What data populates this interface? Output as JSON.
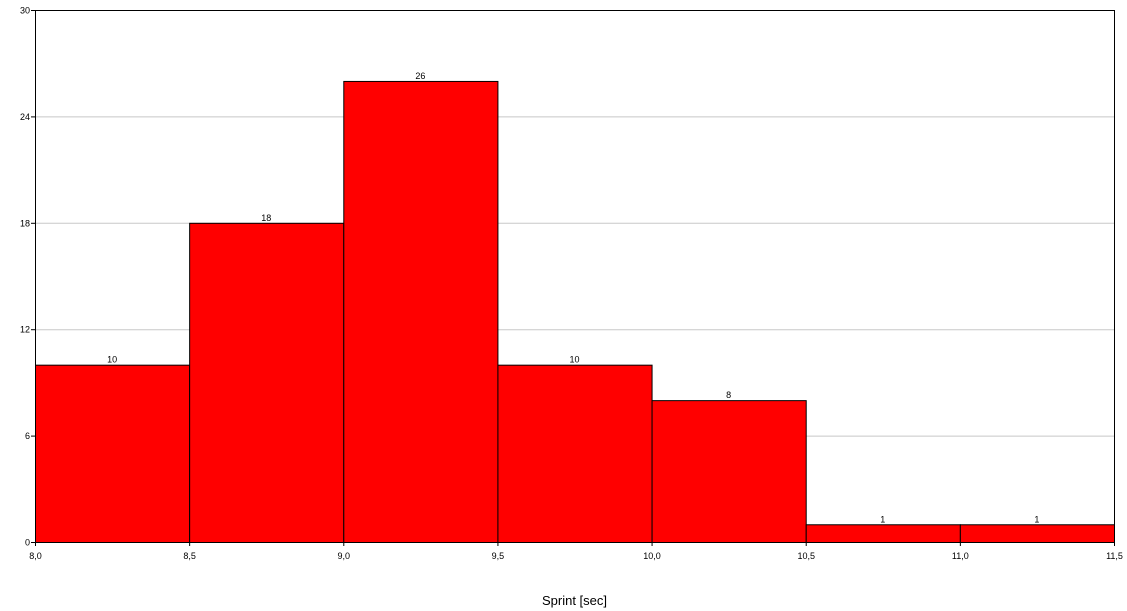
{
  "chart_data": {
    "type": "bar",
    "subtype": "histogram",
    "bins": [
      {
        "start": 8.0,
        "end": 8.5,
        "value": 10,
        "label": "10"
      },
      {
        "start": 8.5,
        "end": 9.0,
        "value": 18,
        "label": "18"
      },
      {
        "start": 9.0,
        "end": 9.5,
        "value": 26,
        "label": "26"
      },
      {
        "start": 9.5,
        "end": 10.0,
        "value": 10,
        "label": "10"
      },
      {
        "start": 10.0,
        "end": 10.5,
        "value": 8,
        "label": "8"
      },
      {
        "start": 10.5,
        "end": 11.0,
        "value": 1,
        "label": "1"
      },
      {
        "start": 11.0,
        "end": 11.5,
        "value": 1,
        "label": "1"
      }
    ],
    "xlabel": "Sprint [sec]",
    "ylabel": "",
    "title": "",
    "xlim": [
      8.0,
      11.5
    ],
    "ylim": [
      0,
      30
    ],
    "xticks": [
      {
        "value": 8.0,
        "label": "8,0"
      },
      {
        "value": 8.5,
        "label": "8,5"
      },
      {
        "value": 9.0,
        "label": "9,0"
      },
      {
        "value": 9.5,
        "label": "9,5"
      },
      {
        "value": 10.0,
        "label": "10,0"
      },
      {
        "value": 10.5,
        "label": "10,5"
      },
      {
        "value": 11.0,
        "label": "11,0"
      },
      {
        "value": 11.5,
        "label": "11,5"
      }
    ],
    "yticks": [
      {
        "value": 0,
        "label": "0"
      },
      {
        "value": 6,
        "label": "6"
      },
      {
        "value": 12,
        "label": "12"
      },
      {
        "value": 18,
        "label": "18"
      },
      {
        "value": 24,
        "label": "24"
      },
      {
        "value": 30,
        "label": "30"
      }
    ],
    "grid": "horizontal",
    "colors": {
      "bar_fill": "#ff0000",
      "bar_stroke": "#000000",
      "grid": "#c8c8c8",
      "frame": "#000000"
    }
  }
}
